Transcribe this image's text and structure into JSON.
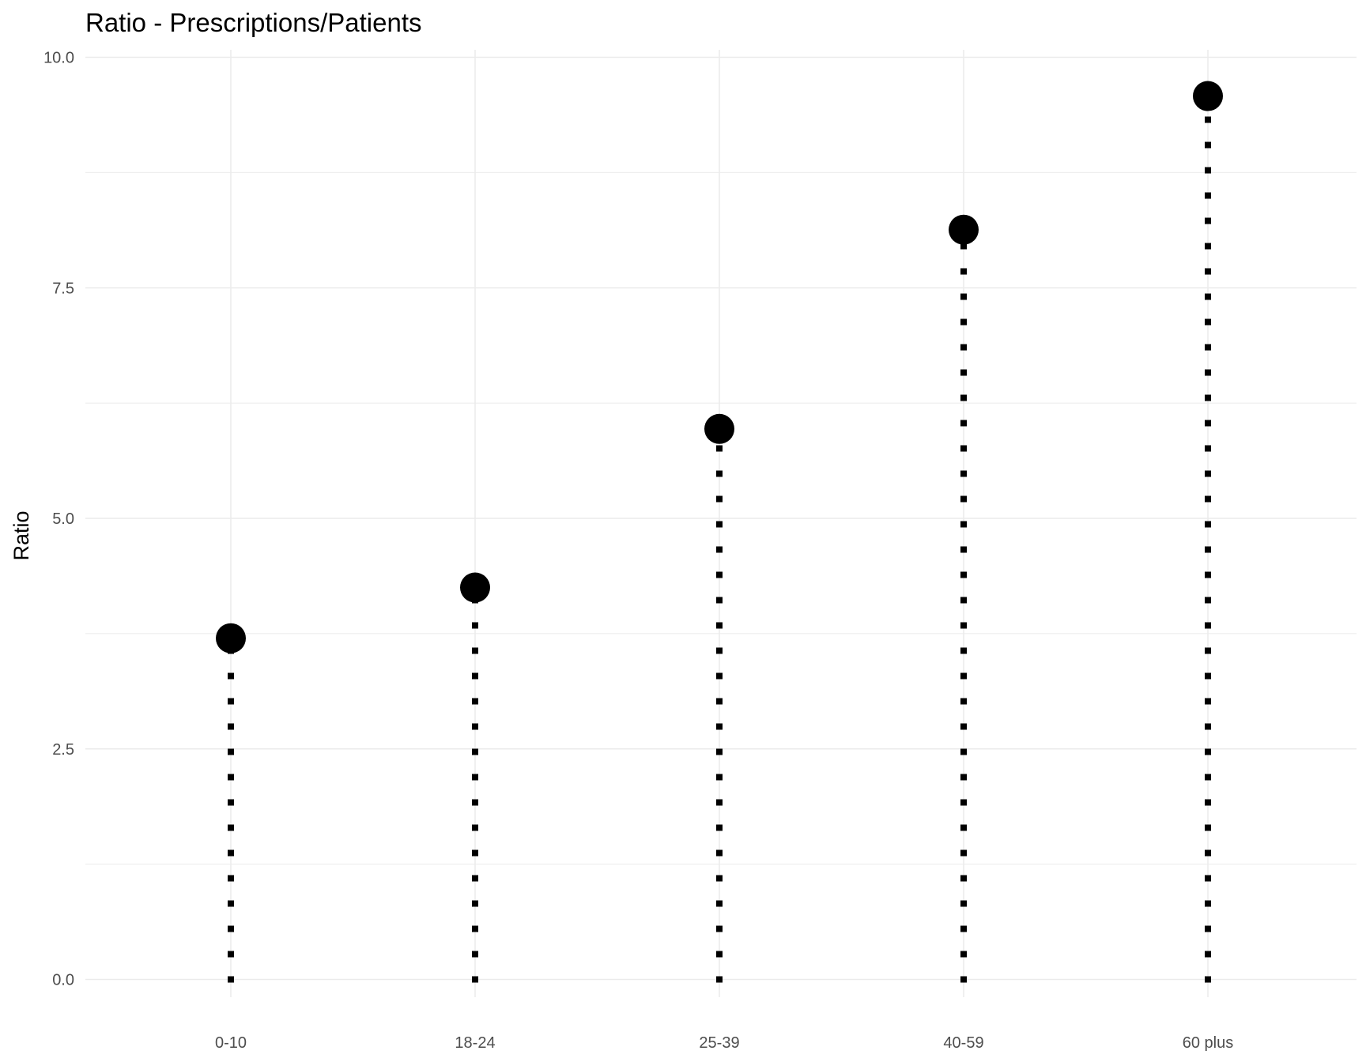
{
  "chart_data": {
    "type": "lollipop",
    "title": "Ratio - Prescriptions/Patients",
    "xlabel": "",
    "ylabel": "Ratio",
    "categories": [
      "0-10",
      "18-24",
      "25-39",
      "40-59",
      "60 plus"
    ],
    "values": [
      3.7,
      4.25,
      5.97,
      8.13,
      9.58
    ],
    "ylim": [
      0,
      10
    ],
    "yticks": [
      "0.0",
      "2.5",
      "5.0",
      "7.5",
      "10.0"
    ],
    "ytick_values": [
      0,
      2.5,
      5,
      7.5,
      10
    ],
    "grid": true,
    "legend": "none",
    "colors": {
      "point": "#000000",
      "stem": "#000000",
      "grid": "#ebebeb",
      "tick_text": "#4d4d4d"
    }
  }
}
